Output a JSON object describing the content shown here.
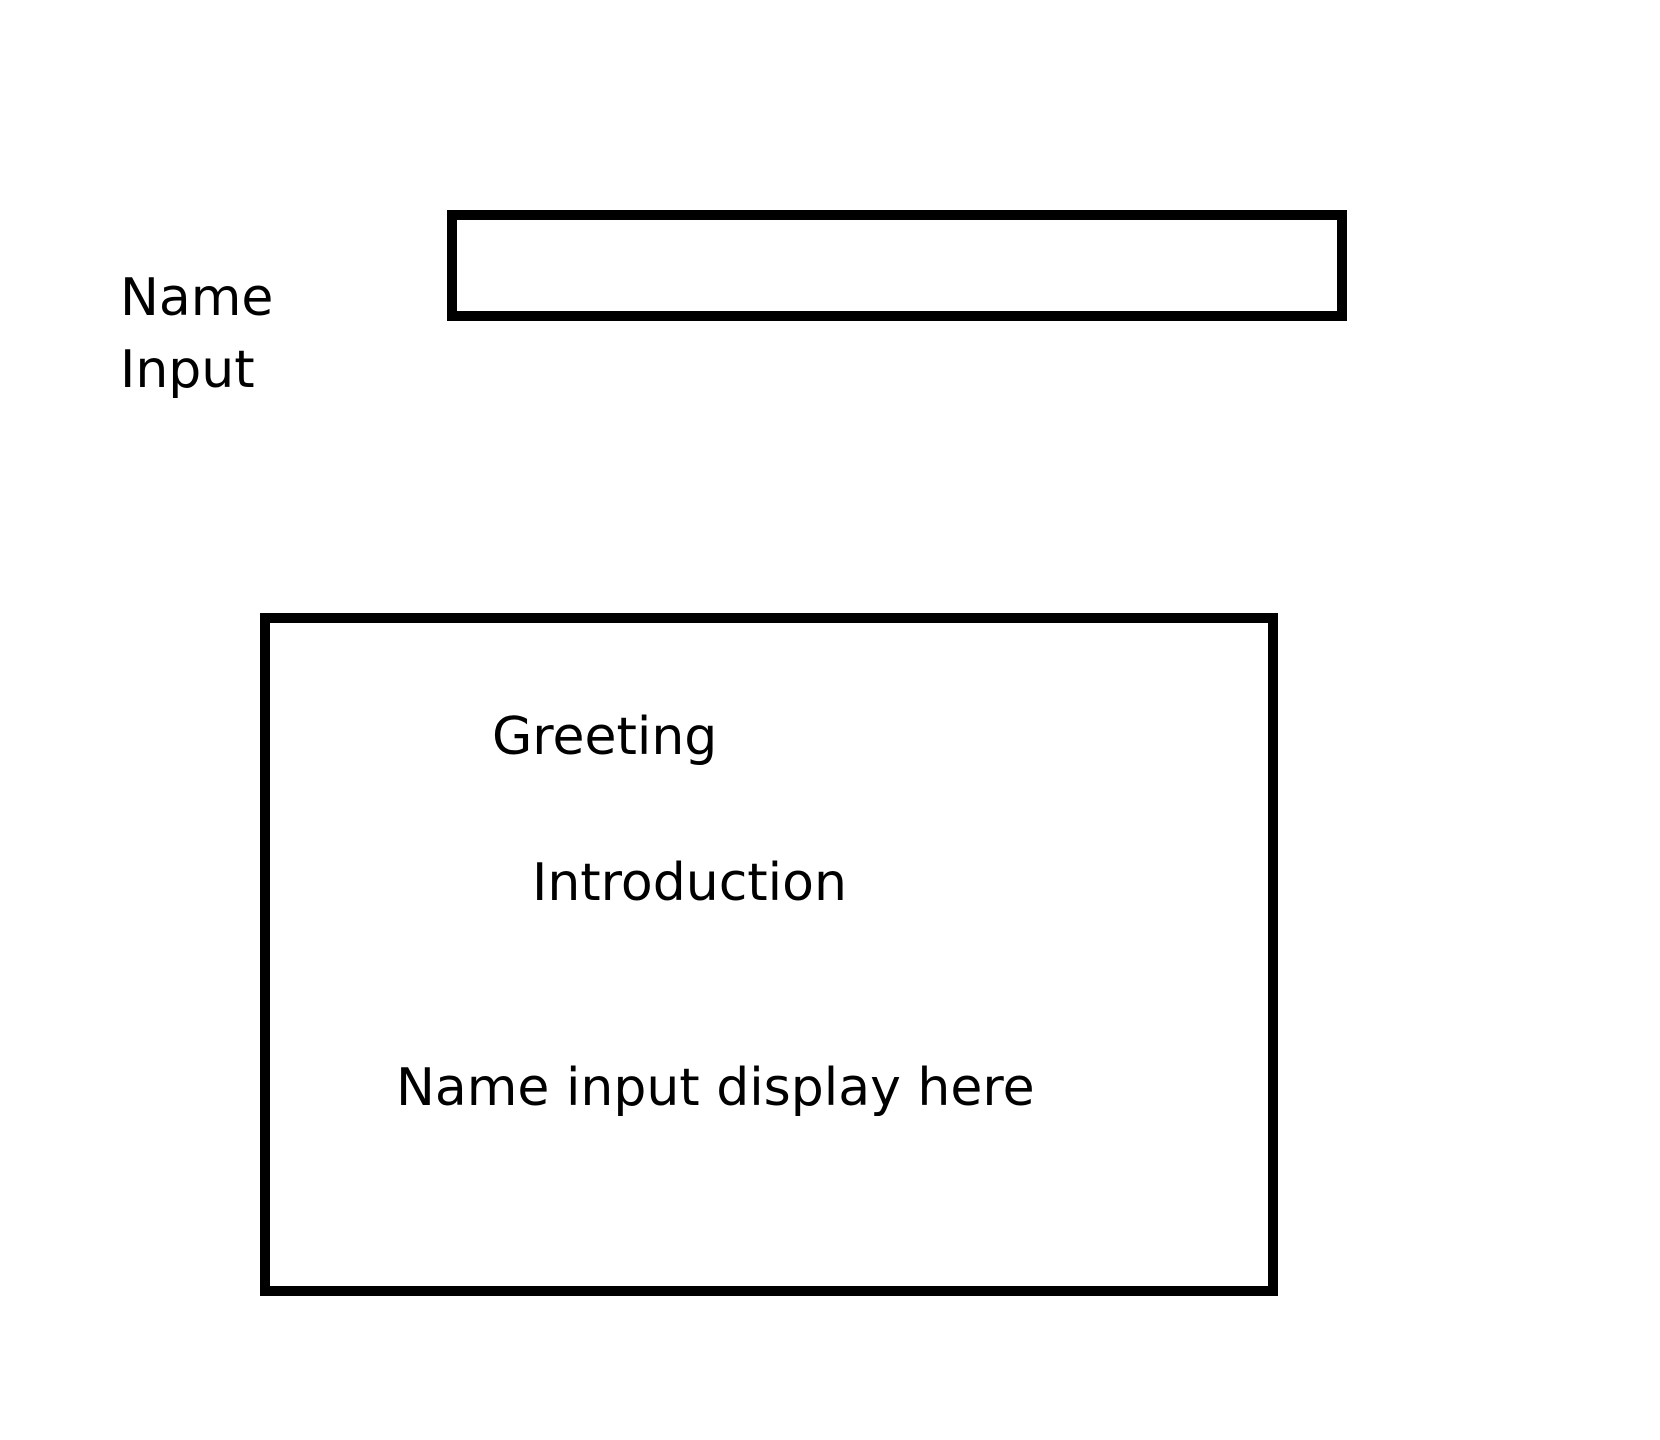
{
  "form": {
    "name_label_line1": "Name",
    "name_label_line2": "Input",
    "name_input_value": ""
  },
  "card": {
    "greeting": "Greeting",
    "introduction": "Introduction",
    "name_display": "Name input display here"
  }
}
